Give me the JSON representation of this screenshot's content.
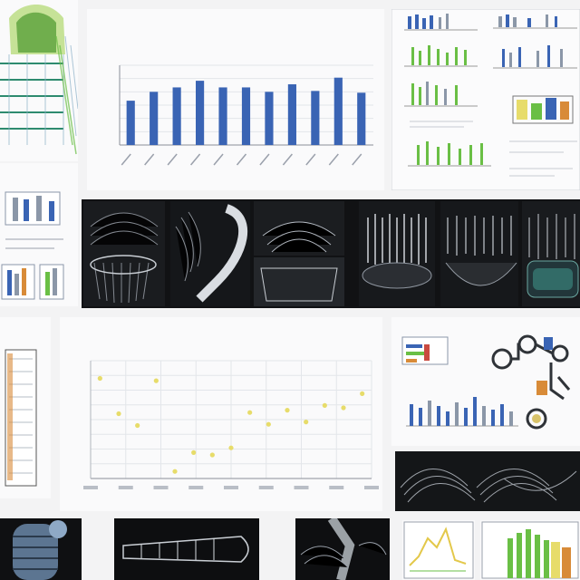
{
  "collage": {
    "bar_panel": {
      "title": "",
      "xlabel": "",
      "chart_data": {
        "type": "bar",
        "categories": [
          "",
          "",
          "",
          "",
          "",
          "",
          "",
          "",
          "",
          "",
          ""
        ],
        "values": [
          1.0,
          1.2,
          1.3,
          1.45,
          1.3,
          1.3,
          1.2,
          1.37,
          1.22,
          1.52,
          1.18
        ],
        "ylim": [
          0,
          1.8
        ],
        "grid": true,
        "bar_color": "#3a64b4"
      }
    },
    "scatter_panel": {
      "title": "",
      "xlabel": "",
      "chart_data": {
        "type": "scatter",
        "x": [
          1,
          2,
          3,
          4,
          5,
          6,
          7,
          8,
          9,
          10,
          11,
          12,
          13,
          14,
          15
        ],
        "y": [
          0.85,
          0.55,
          0.45,
          0.83,
          0.06,
          0.22,
          0.2,
          0.26,
          0.56,
          0.46,
          0.58,
          0.48,
          0.62,
          0.6,
          0.72
        ],
        "ylim": [
          0,
          1
        ],
        "grid": true,
        "point_color": "#e7dc6a"
      }
    },
    "fragment_labels": {
      "left_middle": "",
      "right_middle_top": "",
      "right_middle_bottom": "",
      "left_lower": ""
    },
    "colors": {
      "paper": "#fafafb",
      "dark": "#111214",
      "accent_blue": "#3a64b4",
      "accent_green": "#6abf45",
      "accent_yellow": "#e7dc6a",
      "accent_orange": "#d88b38"
    }
  }
}
